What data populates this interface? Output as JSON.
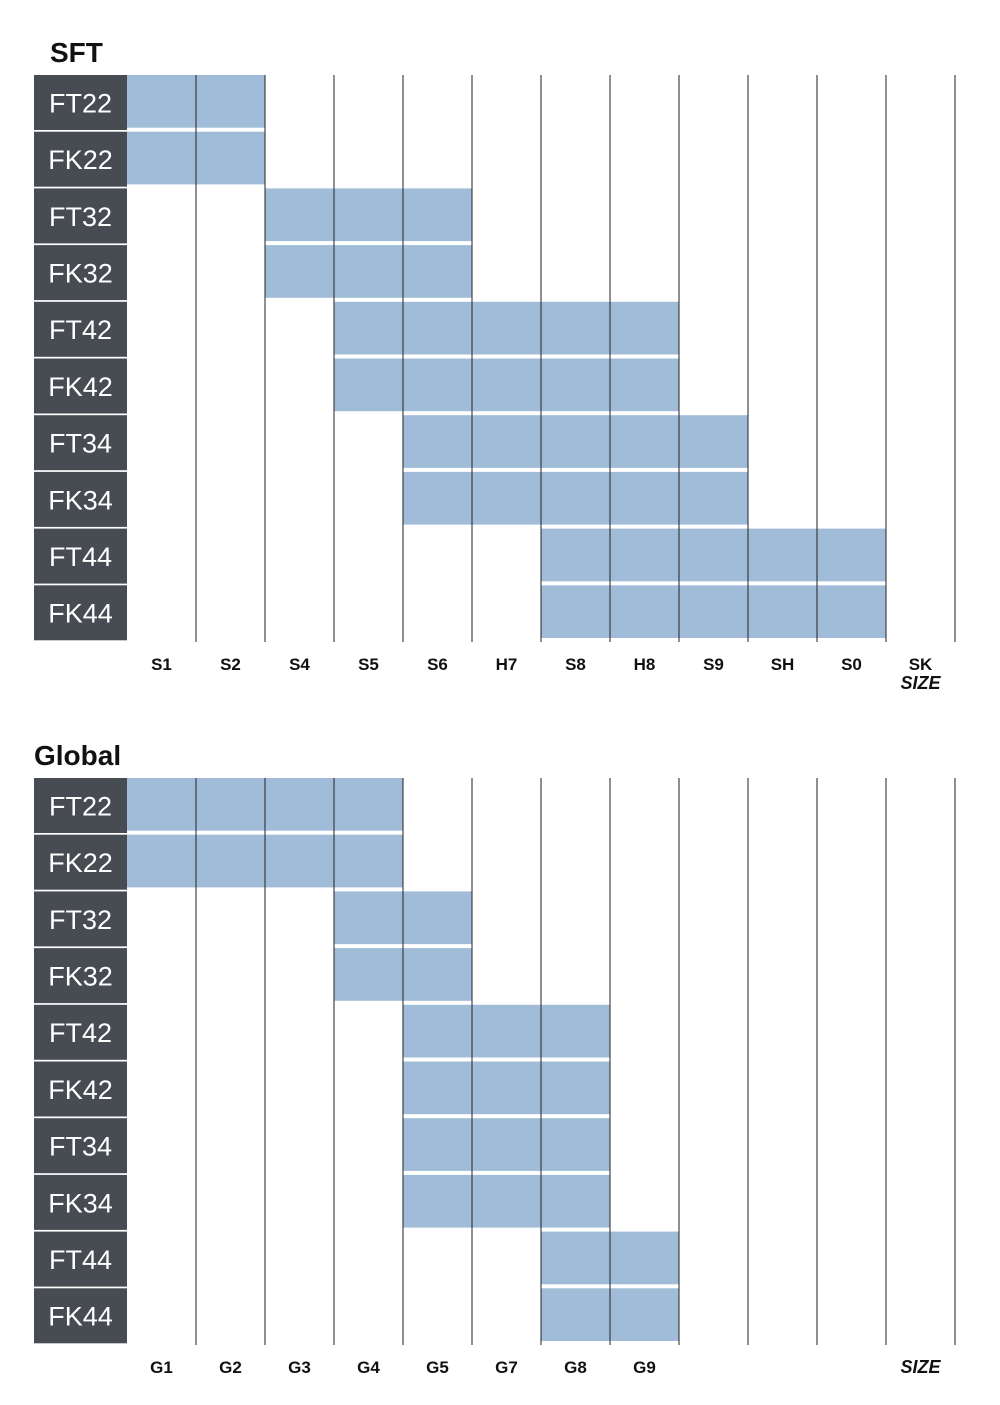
{
  "chart_data": [
    {
      "type": "table",
      "title": "SFT",
      "rows": [
        "FT22",
        "FK22",
        "FT32",
        "FK32",
        "FT42",
        "FK42",
        "FT34",
        "FK34",
        "FT44",
        "FK44"
      ],
      "columns": [
        "S1",
        "S2",
        "S4",
        "S5",
        "S6",
        "H7",
        "S8",
        "H8",
        "S9",
        "SH",
        "S0",
        "SK"
      ],
      "axis_label": "SIZE",
      "ranges": [
        {
          "row": "FT22",
          "from": "S1",
          "to": "S2"
        },
        {
          "row": "FK22",
          "from": "S1",
          "to": "S2"
        },
        {
          "row": "FT32",
          "from": "S4",
          "to": "S6"
        },
        {
          "row": "FK32",
          "from": "S4",
          "to": "S6"
        },
        {
          "row": "FT42",
          "from": "S5",
          "to": "H8"
        },
        {
          "row": "FK42",
          "from": "S5",
          "to": "H8"
        },
        {
          "row": "FT34",
          "from": "S6",
          "to": "S9"
        },
        {
          "row": "FK34",
          "from": "S6",
          "to": "S9"
        },
        {
          "row": "FT44",
          "from": "S8",
          "to": "S0"
        },
        {
          "row": "FK44",
          "from": "S8",
          "to": "S0"
        }
      ]
    },
    {
      "type": "table",
      "title": "Global",
      "rows": [
        "FT22",
        "FK22",
        "FT32",
        "FK32",
        "FT42",
        "FK42",
        "FT34",
        "FK34",
        "FT44",
        "FK44"
      ],
      "columns": [
        "G1",
        "G2",
        "G3",
        "G4",
        "G5",
        "G7",
        "G8",
        "G9",
        "",
        "",
        "",
        ""
      ],
      "axis_label": "SIZE",
      "ranges": [
        {
          "row": "FT22",
          "from": "G1",
          "to": "G4"
        },
        {
          "row": "FK22",
          "from": "G1",
          "to": "G4"
        },
        {
          "row": "FT32",
          "from": "G4",
          "to": "G5"
        },
        {
          "row": "FK32",
          "from": "G4",
          "to": "G5"
        },
        {
          "row": "FT42",
          "from": "G5",
          "to": "G8"
        },
        {
          "row": "FK42",
          "from": "G5",
          "to": "G8"
        },
        {
          "row": "FT34",
          "from": "G5",
          "to": "G8"
        },
        {
          "row": "FK34",
          "from": "G5",
          "to": "G8"
        },
        {
          "row": "FT44",
          "from": "G8",
          "to": "G9"
        },
        {
          "row": "FK44",
          "from": "G8",
          "to": "G9"
        }
      ]
    }
  ],
  "colors": {
    "label_bg": "#464c52",
    "bar_fill": "#a1bcd9",
    "grid_line": "#222222"
  }
}
